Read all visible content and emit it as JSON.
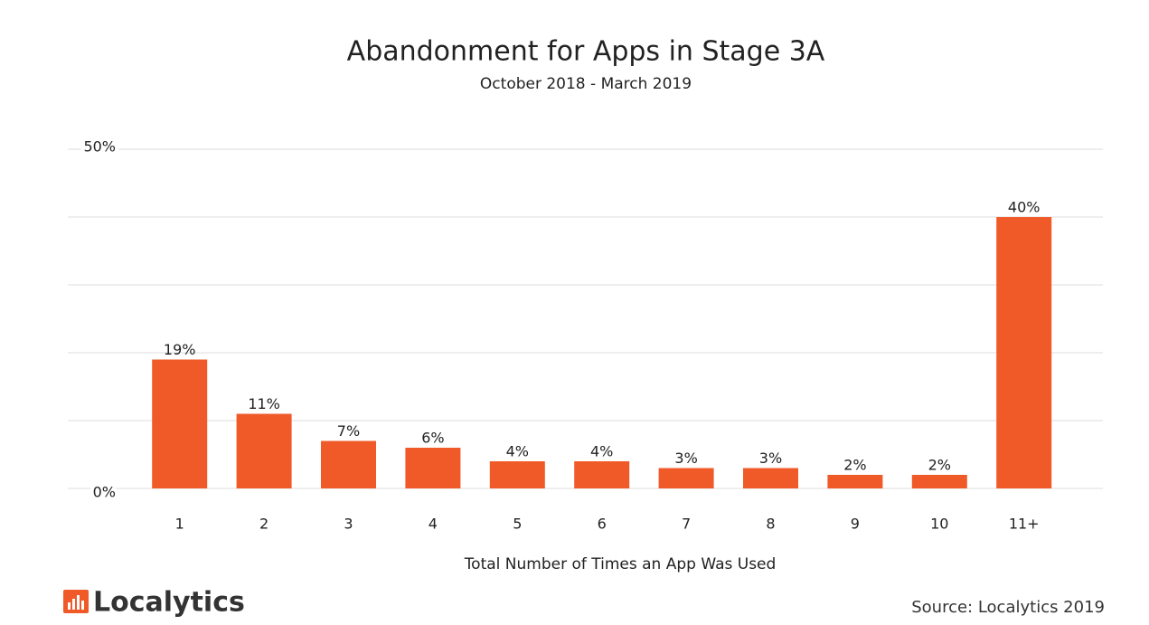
{
  "chart_data": {
    "type": "bar",
    "title": "Abandonment for Apps in Stage 3A",
    "subtitle": "October 2018 - March 2019",
    "x_label": "Total Number of Times an App Was Used",
    "categories": [
      "1",
      "2",
      "3",
      "4",
      "5",
      "6",
      "7",
      "8",
      "9",
      "10",
      "11+"
    ],
    "values": [
      19,
      11,
      7,
      6,
      4,
      4,
      3,
      3,
      2,
      2,
      40
    ],
    "value_labels": [
      "19%",
      "11%",
      "7%",
      "6%",
      "4%",
      "4%",
      "3%",
      "3%",
      "2%",
      "2%",
      "40%"
    ],
    "color": "#f05a28",
    "ylim": [
      0,
      50
    ],
    "yticks": [
      {
        "value": 0,
        "label": "0%"
      },
      {
        "value": 10,
        "label": null
      },
      {
        "value": 20,
        "label": null
      },
      {
        "value": 30,
        "label": null
      },
      {
        "value": 40,
        "label": null
      },
      {
        "value": 50,
        "label": "50%"
      }
    ],
    "grid": true
  },
  "footer": {
    "logo": "Localytics",
    "source": "Source: Localytics 2019"
  }
}
